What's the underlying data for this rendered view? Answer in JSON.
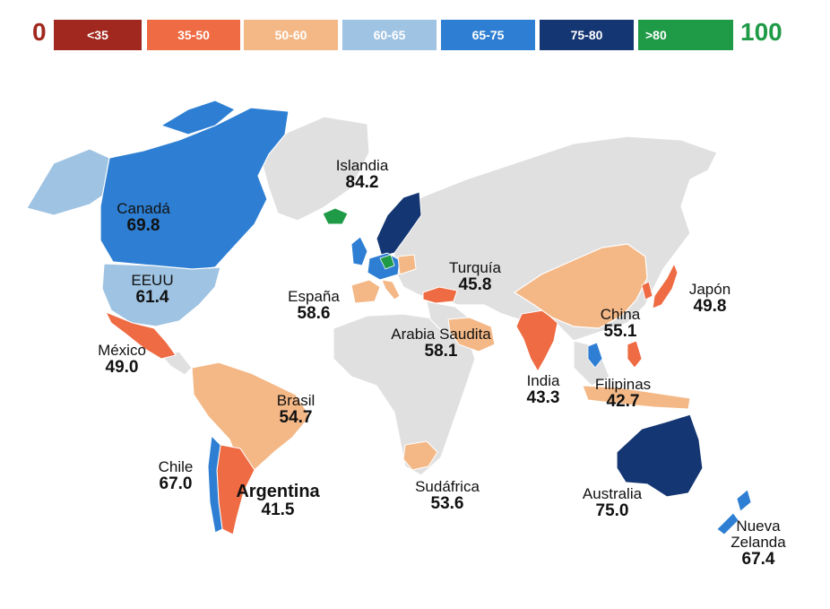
{
  "legend": {
    "min_label": "0",
    "max_label": "100",
    "bins": [
      {
        "label": "<35",
        "color": "#a0281e"
      },
      {
        "label": "35-50",
        "color": "#ee6b43"
      },
      {
        "label": "50-60",
        "color": "#f4b887"
      },
      {
        "label": "60-65",
        "color": "#9fc3e2"
      },
      {
        "label": "65-75",
        "color": "#2e7fd3"
      },
      {
        "label": "75-80",
        "color": "#143673"
      },
      {
        "label": ">80",
        "color": "#1f9a46"
      }
    ]
  },
  "map": {
    "land_color": "#e0e0e0",
    "countries": [
      {
        "name": "Islandia",
        "value": "84.2",
        "color": "#1f9a46"
      },
      {
        "name": "Canadá",
        "value": "69.8",
        "color": "#2e7fd3"
      },
      {
        "name": "EEUU",
        "value": "61.4",
        "color": "#9fc3e2"
      },
      {
        "name": "España",
        "value": "58.6",
        "color": "#f4b887"
      },
      {
        "name": "Turquía",
        "value": "45.8",
        "color": "#ee6b43"
      },
      {
        "name": "Japón",
        "value": "49.8",
        "color": "#ee6b43"
      },
      {
        "name": "China",
        "value": "55.1",
        "color": "#f4b887"
      },
      {
        "name": "México",
        "value": "49.0",
        "color": "#ee6b43"
      },
      {
        "name": "Arabia Saudita",
        "value": "58.1",
        "color": "#f4b887"
      },
      {
        "name": "India",
        "value": "43.3",
        "color": "#ee6b43"
      },
      {
        "name": "Filipinas",
        "value": "42.7",
        "color": "#ee6b43"
      },
      {
        "name": "Brasil",
        "value": "54.7",
        "color": "#f4b887"
      },
      {
        "name": "Chile",
        "value": "67.0",
        "color": "#2e7fd3"
      },
      {
        "name": "Argentina",
        "value": "41.5",
        "color": "#ee6b43"
      },
      {
        "name": "Sudáfrica",
        "value": "53.6",
        "color": "#f4b887"
      },
      {
        "name": "Australia",
        "value": "75.0",
        "color": "#143673"
      },
      {
        "name": "Nueva Zelanda",
        "value": "67.4",
        "color": "#2e7fd3"
      }
    ]
  }
}
